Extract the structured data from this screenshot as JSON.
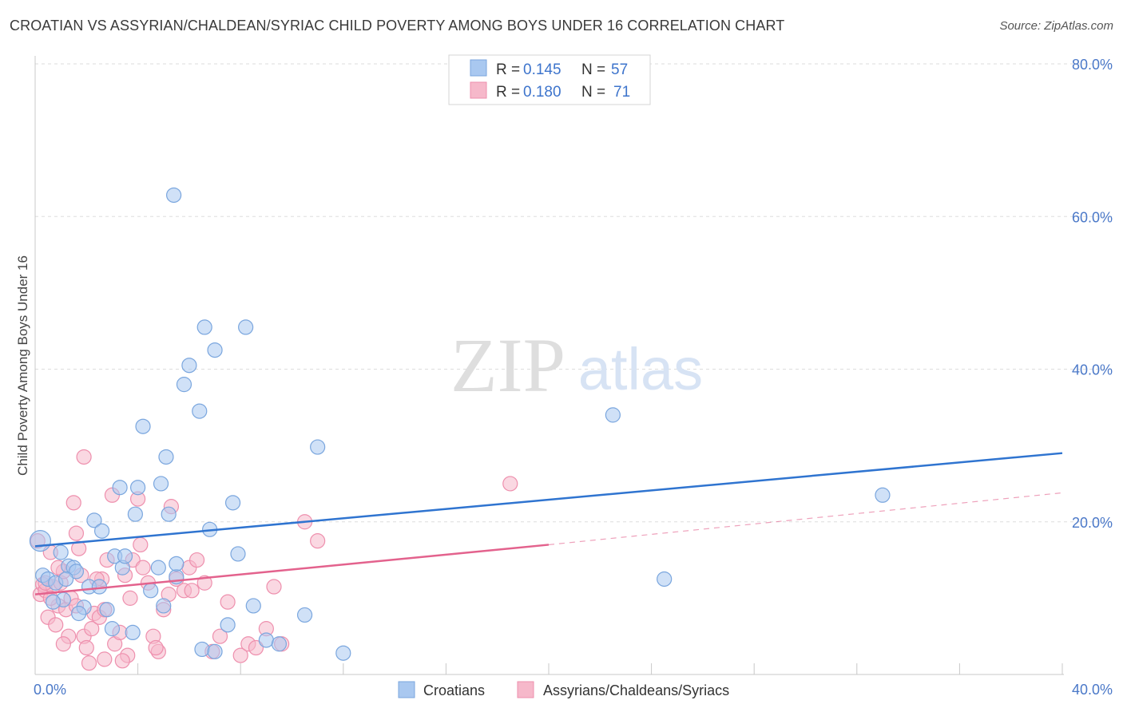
{
  "title": "CROATIAN VS ASSYRIAN/CHALDEAN/SYRIAC CHILD POVERTY AMONG BOYS UNDER 16 CORRELATION CHART",
  "source": "Source: ZipAtlas.com",
  "watermark": {
    "zip": "ZIP",
    "atlas": "atlas"
  },
  "colors": {
    "blue_fill": "#a9c8f0",
    "blue_stroke": "#7aa6de",
    "blue_line": "#2f74d0",
    "pink_fill": "#f6b8ca",
    "pink_stroke": "#ee8fad",
    "pink_line": "#e3628d",
    "tick_label": "#4a78c8",
    "grid": "#dddddd"
  },
  "chart_data": {
    "type": "scatter",
    "xlabel": "",
    "ylabel": "Child Poverty Among Boys Under 16",
    "xlim": [
      0,
      40
    ],
    "ylim": [
      0,
      80
    ],
    "x_tick_labels": [
      {
        "value": 0,
        "label": "0.0%"
      },
      {
        "value": 40,
        "label": "40.0%"
      }
    ],
    "y_tick_labels": [
      {
        "value": 20,
        "label": "20.0%"
      },
      {
        "value": 40,
        "label": "40.0%"
      },
      {
        "value": 60,
        "label": "60.0%"
      },
      {
        "value": 80,
        "label": "80.0%"
      }
    ],
    "legend": {
      "position": "top-center",
      "rows": [
        {
          "r_label": "R =",
          "r_value": "0.145",
          "n_label": "N =",
          "n_value": "57"
        },
        {
          "r_label": "R =",
          "r_value": "0.180",
          "n_label": "N =",
          "n_value": "71"
        }
      ]
    },
    "bottom_legend": [
      "Croatians",
      "Assyrians/Chaldeans/Syriacs"
    ],
    "series": [
      {
        "name": "Croatians",
        "r": 0.145,
        "n": 57,
        "trend": {
          "x": [
            0,
            40
          ],
          "y": [
            16.8,
            29.0
          ]
        },
        "points": [
          [
            0.2,
            17.5
          ],
          [
            0.3,
            13.0
          ],
          [
            0.5,
            12.5
          ],
          [
            0.8,
            12.0
          ],
          [
            1.0,
            16.0
          ],
          [
            1.1,
            9.8
          ],
          [
            1.3,
            14.2
          ],
          [
            1.5,
            14.0
          ],
          [
            1.6,
            13.5
          ],
          [
            1.9,
            8.8
          ],
          [
            2.1,
            11.5
          ],
          [
            2.3,
            20.2
          ],
          [
            2.6,
            18.8
          ],
          [
            2.8,
            8.5
          ],
          [
            3.1,
            15.5
          ],
          [
            3.4,
            14.0
          ],
          [
            3.5,
            15.5
          ],
          [
            3.9,
            21.0
          ],
          [
            4.2,
            32.5
          ],
          [
            4.5,
            11.0
          ],
          [
            5.0,
            9.0
          ],
          [
            5.2,
            21.0
          ],
          [
            5.5,
            12.8
          ],
          [
            6.0,
            40.5
          ],
          [
            6.4,
            34.5
          ],
          [
            6.6,
            45.5
          ],
          [
            7.0,
            42.5
          ],
          [
            7.5,
            6.5
          ],
          [
            7.9,
            15.8
          ],
          [
            8.2,
            45.5
          ],
          [
            8.5,
            9.0
          ],
          [
            9.0,
            4.5
          ],
          [
            9.5,
            4.0
          ],
          [
            10.5,
            7.8
          ],
          [
            11.0,
            29.8
          ],
          [
            12.0,
            2.8
          ],
          [
            5.4,
            62.8
          ],
          [
            3.3,
            24.5
          ],
          [
            4.0,
            24.5
          ],
          [
            4.9,
            25.0
          ],
          [
            5.1,
            28.5
          ],
          [
            5.8,
            38.0
          ],
          [
            7.7,
            22.5
          ],
          [
            6.8,
            19.0
          ],
          [
            5.5,
            14.5
          ],
          [
            3.8,
            5.5
          ],
          [
            3.0,
            6.0
          ],
          [
            6.5,
            3.3
          ],
          [
            7.0,
            3.0
          ],
          [
            0.7,
            9.5
          ],
          [
            1.7,
            8.0
          ],
          [
            4.8,
            14.0
          ],
          [
            22.5,
            34.0
          ],
          [
            33.0,
            23.5
          ],
          [
            24.5,
            12.5
          ],
          [
            2.5,
            11.5
          ],
          [
            1.2,
            12.5
          ]
        ],
        "sizes": {
          "0": 26,
          "1": 18
        }
      },
      {
        "name": "Assyrians/Chaldeans/Syriacs",
        "r": 0.18,
        "n": 71,
        "trend": {
          "x": [
            0,
            20
          ],
          "y": [
            10.5,
            17.0
          ]
        },
        "trend_extended": {
          "x": [
            20,
            40
          ],
          "y": [
            17.0,
            23.8
          ]
        },
        "points": [
          [
            0.1,
            17.5
          ],
          [
            0.2,
            10.5
          ],
          [
            0.3,
            11.8
          ],
          [
            0.4,
            11.0
          ],
          [
            0.5,
            7.5
          ],
          [
            0.6,
            16.0
          ],
          [
            0.7,
            11.5
          ],
          [
            0.8,
            6.5
          ],
          [
            0.9,
            9.0
          ],
          [
            1.0,
            12.0
          ],
          [
            1.1,
            13.5
          ],
          [
            1.2,
            8.5
          ],
          [
            1.3,
            5.0
          ],
          [
            1.5,
            22.5
          ],
          [
            1.6,
            18.5
          ],
          [
            1.7,
            16.5
          ],
          [
            1.8,
            13.0
          ],
          [
            1.9,
            5.0
          ],
          [
            2.0,
            3.5
          ],
          [
            2.2,
            6.0
          ],
          [
            2.3,
            8.0
          ],
          [
            2.5,
            7.5
          ],
          [
            2.6,
            12.5
          ],
          [
            2.7,
            8.5
          ],
          [
            2.8,
            15.0
          ],
          [
            3.0,
            23.5
          ],
          [
            3.1,
            4.0
          ],
          [
            3.3,
            5.5
          ],
          [
            3.5,
            13.0
          ],
          [
            3.6,
            2.5
          ],
          [
            3.8,
            15.0
          ],
          [
            4.0,
            23.0
          ],
          [
            4.2,
            14.0
          ],
          [
            4.4,
            12.0
          ],
          [
            4.6,
            5.0
          ],
          [
            4.8,
            3.0
          ],
          [
            5.0,
            8.5
          ],
          [
            5.2,
            10.5
          ],
          [
            5.5,
            12.5
          ],
          [
            5.8,
            11.0
          ],
          [
            6.0,
            14.0
          ],
          [
            6.3,
            15.0
          ],
          [
            6.6,
            12.0
          ],
          [
            6.9,
            3.0
          ],
          [
            7.2,
            5.0
          ],
          [
            7.5,
            9.5
          ],
          [
            8.0,
            2.5
          ],
          [
            8.3,
            4.0
          ],
          [
            8.6,
            3.5
          ],
          [
            9.0,
            6.0
          ],
          [
            9.3,
            11.5
          ],
          [
            9.6,
            4.0
          ],
          [
            10.5,
            20.0
          ],
          [
            11.0,
            17.5
          ],
          [
            1.9,
            28.5
          ],
          [
            1.4,
            10.0
          ],
          [
            0.9,
            14.0
          ],
          [
            1.1,
            4.0
          ],
          [
            2.1,
            1.5
          ],
          [
            2.7,
            2.0
          ],
          [
            3.4,
            1.8
          ],
          [
            5.3,
            22.0
          ],
          [
            4.1,
            17.0
          ],
          [
            6.1,
            11.0
          ],
          [
            0.4,
            12.0
          ],
          [
            0.6,
            10.0
          ],
          [
            3.7,
            10.0
          ],
          [
            2.4,
            12.5
          ],
          [
            1.6,
            9.0
          ],
          [
            4.7,
            3.5
          ],
          [
            18.5,
            25.0
          ]
        ]
      }
    ]
  }
}
